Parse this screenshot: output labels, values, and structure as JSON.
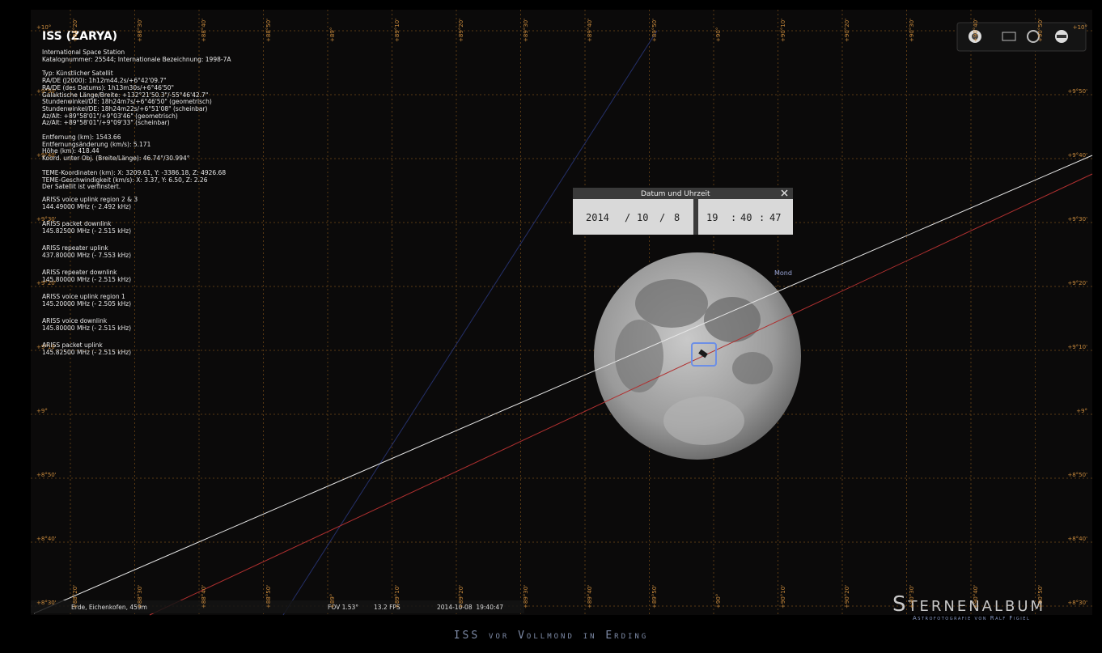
{
  "sky": {
    "altitude_labels": [
      "+10°",
      "+9°50'",
      "+9°40'",
      "+9°30'",
      "+9°20'",
      "+9°10'",
      "+9°",
      "+8°50'",
      "+8°40'",
      "+8°30'"
    ],
    "azimuth_labels": [
      "+88°20'",
      "+88°30'",
      "+88°40'",
      "+88°50'",
      "+89°",
      "+89°10'",
      "+89°20'",
      "+89°30'",
      "+89°40'",
      "+89°50'",
      "+90°",
      "+90°10'",
      "+90°20'",
      "+90°30'",
      "+90°40'",
      "+90°50'"
    ],
    "moon_label": "Mond"
  },
  "info": {
    "title": "ISS (ZARYA)",
    "groups": [
      [
        "International Space Station",
        "Katalognummer: 25544; Internationale Bezeichnung: 1998-7A"
      ],
      [
        "Typ: Künstlicher Satellit",
        "RA/DE (J2000): 1h12m44.2s/+6°42'09.7\"",
        "RA/DE (des Datums): 1h13m30s/+6°46'50\"",
        "Galaktische Länge/Breite: +132°21'50.3\"/-55°46'42.7\"",
        "Stundenwinkel/DE: 18h24m7s/+6°46'50\" (geometrisch)",
        "Stundenwinkel/DE: 18h24m22s/+6°51'08\" (scheinbar)",
        "Az/Alt: +89°58'01\"/+9°03'46\" (geometrisch)",
        "Az/Alt: +89°58'01\"/+9°09'33\" (scheinbar)"
      ],
      [
        "Entfernung (km): 1543.66",
        "Entfernungsänderung (km/s): 5.171",
        "Höhe (km): 418.44",
        "Koord. unter Obj. (Breite/Länge): 46.74°/30.994°"
      ],
      [
        "TEME-Koordinaten (km): X: 3209.61, Y: -3386.18, Z: 4926.68",
        "TEME-Geschwindigkeit (km/s): X: 3.37, Y: 6.50, Z: 2.26",
        "Der Satellit ist verfinstert."
      ]
    ],
    "radios": [
      {
        "name": "ARISS voice uplink region 2 & 3",
        "freq": "144.49000 MHz (- 2.492 kHz)"
      },
      {
        "name": "ARISS packet downlink",
        "freq": "145.82500 MHz (- 2.515 kHz)"
      },
      {
        "name": "ARISS repeater uplink",
        "freq": "437.80000 MHz (- 7.553 kHz)"
      },
      {
        "name": "ARISS repeater downlink",
        "freq": "145.80000 MHz (- 2.515 kHz)"
      },
      {
        "name": "ARISS voice uplink region 1",
        "freq": "145.20000 MHz (- 2.505 kHz)"
      },
      {
        "name": "ARISS voice downlink",
        "freq": "145.80000 MHz (- 2.515 kHz)"
      },
      {
        "name": "ARISS packet uplink",
        "freq": "145.82500 MHz (- 2.515 kHz)"
      }
    ]
  },
  "dialog": {
    "title": "Datum und Uhrzeit",
    "year": "2014",
    "month": "10",
    "day": "8",
    "hour": "19",
    "minute": "40",
    "second": "47",
    "date_separator": "/",
    "time_separator": ":"
  },
  "status": {
    "location": "Erde, Eichenkofen, 459m",
    "fov": "FOV 1.53°",
    "fps": "13.2 FPS",
    "datetime": "2014-10-08  19:40:47"
  },
  "watermark": {
    "name": "Sternenalbum",
    "subtitle": "Astrofotografie von Ralf Figiel"
  },
  "caption": "ISS vor Vollmond in Erding"
}
